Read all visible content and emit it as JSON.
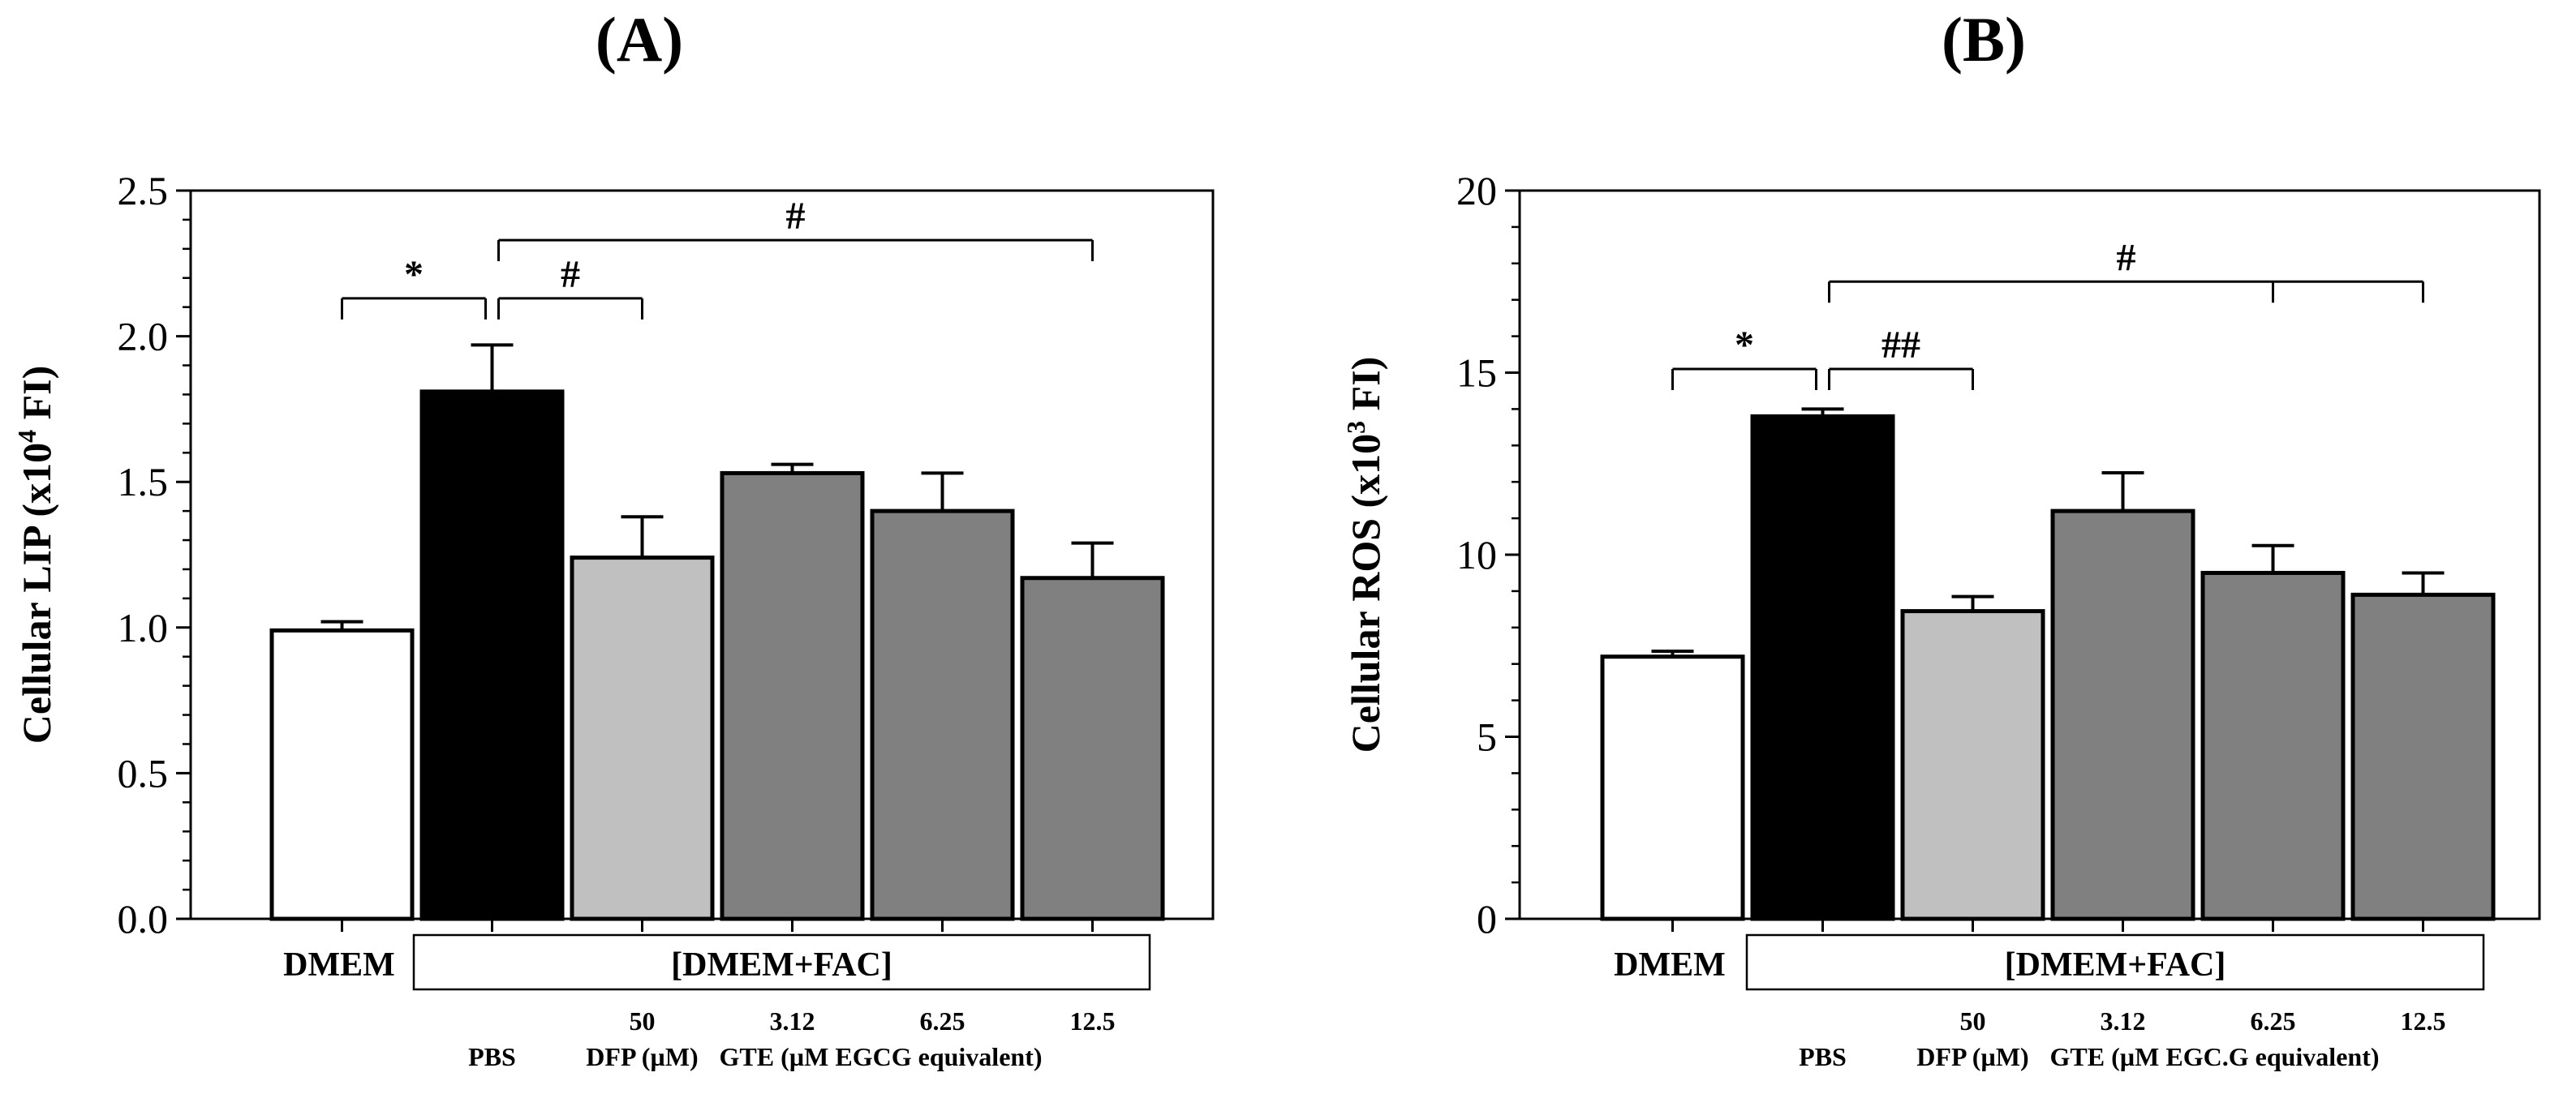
{
  "colors": {
    "dmem": "#ffffff",
    "pbs": "#000000",
    "dfp": "#c0c0c0",
    "gte": "#808080",
    "axis": "#000000"
  },
  "chart_data": [
    {
      "type": "bar",
      "panel_label": "(A)",
      "ylabel_main": "Cellular LIP (x10",
      "ylabel_sup": "4",
      "ylabel_end": " FI)",
      "ylim": [
        0,
        2.5
      ],
      "yticks": [
        "0.0",
        "0.5",
        "1.0",
        "1.5",
        "2.0",
        "2.5"
      ],
      "categories": [
        "DMEM",
        "PBS",
        "DFP 50",
        "GTE 3.12",
        "GTE 6.25",
        "GTE 12.5"
      ],
      "values": [
        0.99,
        1.81,
        1.24,
        1.53,
        1.4,
        1.17
      ],
      "errors": [
        0.03,
        0.16,
        0.14,
        0.03,
        0.13,
        0.12
      ],
      "x_labels": {
        "dmem": "DMEM",
        "group": "[DMEM+FAC]",
        "pbs": "PBS",
        "dfp_conc": "50",
        "dfp_name": "DFP (µM)",
        "gte_concs": [
          "3.12",
          "6.25",
          "12.5"
        ],
        "gte_name": "GTE (µM EGCG equivalent)"
      },
      "significance": [
        {
          "label": "*",
          "from": 0,
          "to": 1,
          "y": 2.13
        },
        {
          "label": "#",
          "from": 1,
          "to": 2,
          "y": 2.13
        },
        {
          "label": "#",
          "from": 1,
          "to": 5,
          "y": 2.33
        }
      ]
    },
    {
      "type": "bar",
      "panel_label": "(B)",
      "ylabel_main": "Cellular ROS (x10",
      "ylabel_sup": "3",
      "ylabel_end": " FI)",
      "ylim": [
        0,
        20
      ],
      "yticks": [
        "0",
        "5",
        "10",
        "15",
        "20"
      ],
      "categories": [
        "DMEM",
        "PBS",
        "DFP 50",
        "GTE 3.12",
        "GTE 6.25",
        "GTE 12.5"
      ],
      "values": [
        7.2,
        13.8,
        8.45,
        11.2,
        9.5,
        8.9
      ],
      "errors": [
        0.15,
        0.2,
        0.4,
        1.05,
        0.75,
        0.6
      ],
      "x_labels": {
        "dmem": "DMEM",
        "group": "[DMEM+FAC]",
        "pbs": "PBS",
        "dfp_conc": "50",
        "dfp_name": "DFP (µM)",
        "gte_concs": [
          "3.12",
          "6.25",
          "12.5"
        ],
        "gte_name": "GTE (µM EGC.G equivalent)"
      },
      "significance": [
        {
          "label": "*",
          "from": 0,
          "to": 1,
          "y": 15.1
        },
        {
          "label": "##",
          "from": 1,
          "to": 2,
          "y": 15.1
        },
        {
          "label": "#",
          "from": 1,
          "to": 5,
          "y": 17.5,
          "extra_tick": 4
        }
      ]
    }
  ]
}
